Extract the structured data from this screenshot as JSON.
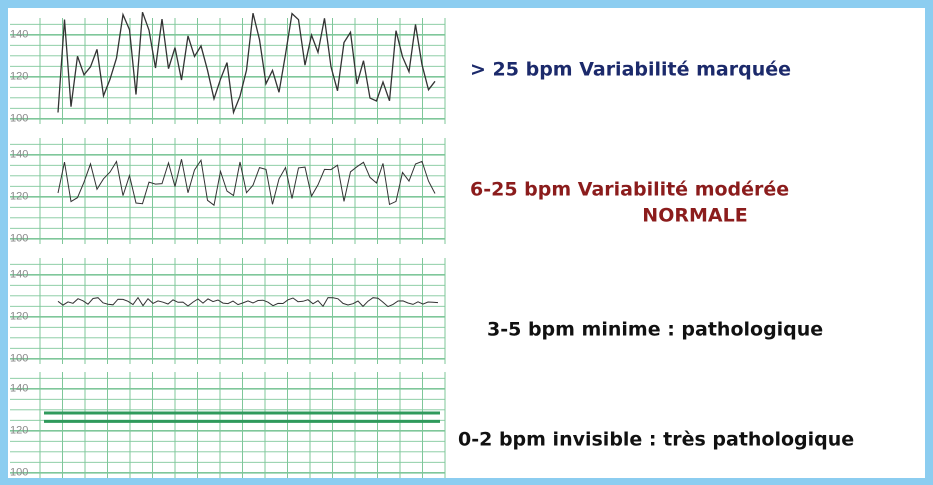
{
  "panels": [
    {
      "yticks": [
        140,
        120,
        100
      ],
      "caption": [
        "> 25 bpm Variabilité marquée"
      ]
    },
    {
      "yticks": [
        140,
        120,
        100
      ],
      "caption": [
        "6-25 bpm Variabilité modérée",
        "NORMALE"
      ]
    },
    {
      "yticks": [
        140,
        120,
        100
      ],
      "caption": [
        "3-5 bpm minime : pathologique"
      ]
    },
    {
      "yticks": [
        140,
        120,
        100
      ],
      "caption": [
        "0-2 bpm invisible : très pathologique"
      ]
    }
  ]
}
